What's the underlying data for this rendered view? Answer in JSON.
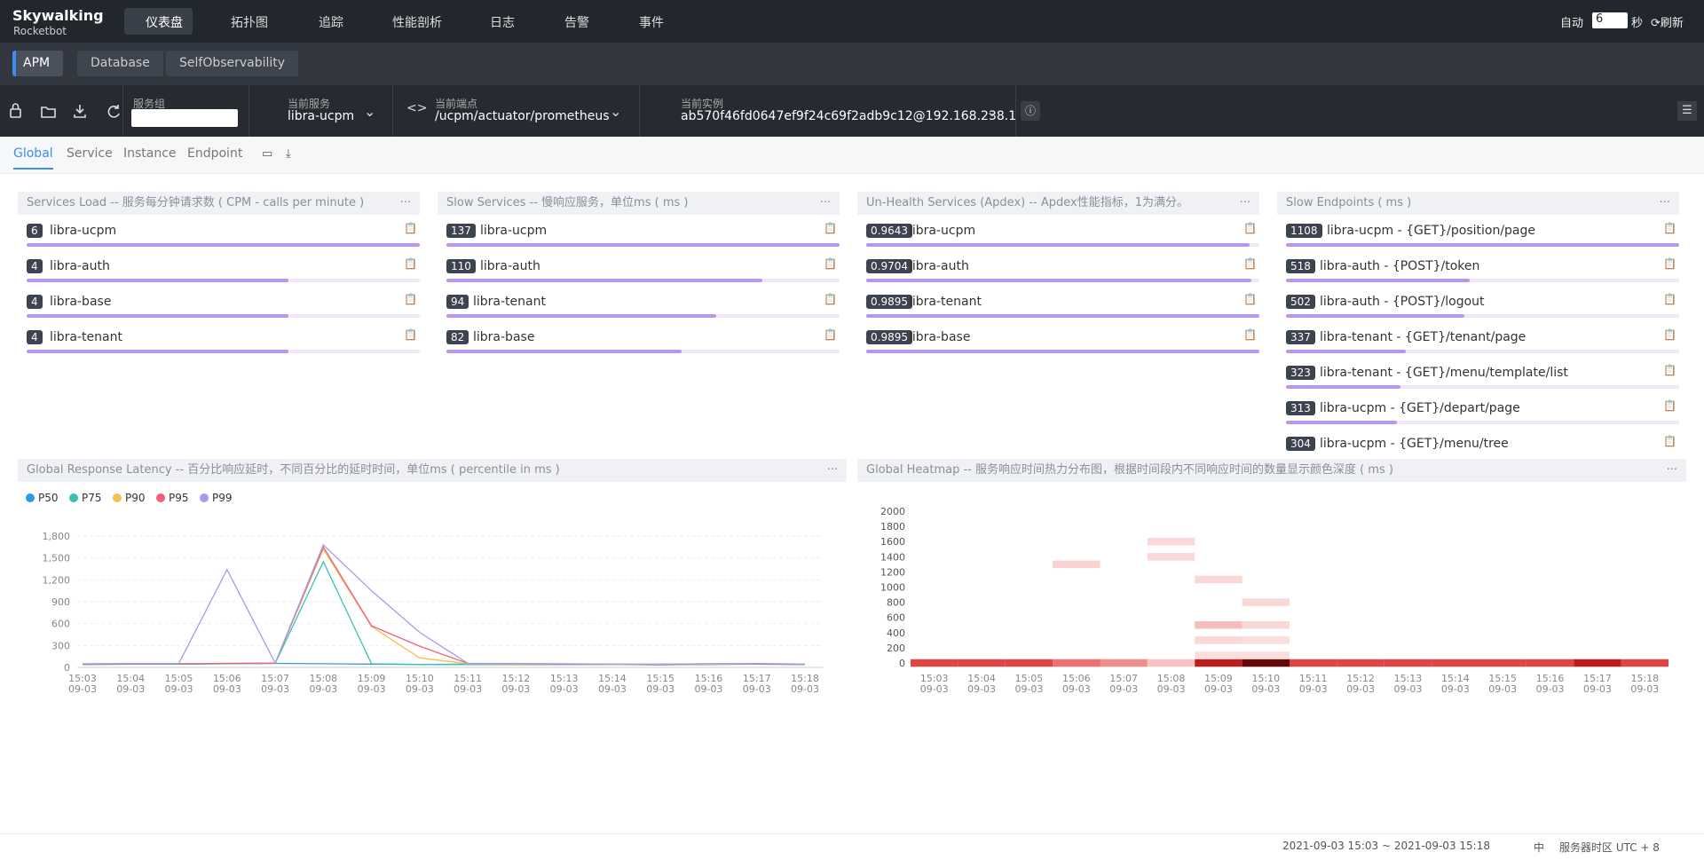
{
  "nav": {
    "logo": "Skywalking",
    "logo_sub": "Rocketbot",
    "menu": [
      "仪表盘",
      "拓扑图",
      "追踪",
      "性能剖析",
      "日志",
      "告警",
      "事件"
    ],
    "auto_label": "自动",
    "interval": 6,
    "interval_unit": "秒",
    "refresh": "刷新"
  },
  "tabs": [
    "APM",
    "Database",
    "SelfObservability"
  ],
  "toolbar": {
    "group_label": "服务组",
    "service_label": "当前服务",
    "service": "libra-ucpm",
    "endpoint_label": "当前端点",
    "endpoint": "/ucpm/actuator/prometheus",
    "instance_label": "当前实例",
    "instance": "ab570f46fd0647ef9f24c69f2adb9c12@192.168.238.1"
  },
  "subtabs": [
    "Global",
    "Service",
    "Instance",
    "Endpoint"
  ],
  "panels": [
    {
      "title": "Services Load -- 服务每分钟请求数 ( CPM - calls per minute )",
      "items": [
        {
          "value": 6,
          "name": "libra-ucpm"
        },
        {
          "value": 4,
          "name": "libra-auth"
        },
        {
          "value": 4,
          "name": "libra-base"
        },
        {
          "value": 4,
          "name": "libra-tenant"
        }
      ]
    },
    {
      "title": "Slow Services -- 慢响应服务，单位ms ( ms )",
      "items": [
        {
          "value": 137,
          "name": "libra-ucpm"
        },
        {
          "value": 110,
          "name": "libra-auth"
        },
        {
          "value": 94,
          "name": "libra-tenant"
        },
        {
          "value": 82,
          "name": "libra-base"
        }
      ]
    },
    {
      "title": "Un-Health Services (Apdex) -- Apdex性能指标，1为满分。",
      "items": [
        {
          "value": 0.9643,
          "name": "libra-ucpm"
        },
        {
          "value": 0.9704,
          "name": "libra-auth"
        },
        {
          "value": 0.9895,
          "name": "libra-tenant"
        },
        {
          "value": 0.9895,
          "name": "libra-base"
        }
      ]
    },
    {
      "title": "Slow Endpoints ( ms )",
      "items": [
        {
          "value": 1108,
          "name": "libra-ucpm - {GET}/position/page"
        },
        {
          "value": 518,
          "name": "libra-auth - {POST}/token"
        },
        {
          "value": 502,
          "name": "libra-auth - {POST}/logout"
        },
        {
          "value": 337,
          "name": "libra-tenant - {GET}/tenant/page"
        },
        {
          "value": 323,
          "name": "libra-tenant - {GET}/menu/template/list"
        },
        {
          "value": 313,
          "name": "libra-ucpm - {GET}/depart/page"
        },
        {
          "value": 304,
          "name": "libra-ucpm - {GET}/menu/tree"
        }
      ]
    }
  ],
  "latency_chart": {
    "type": "line",
    "title": "Global Response Latency -- 百分比响应延时，不同百分比的延时时间，单位ms ( percentile in ms )",
    "categories": [
      "15:03",
      "15:04",
      "15:05",
      "15:06",
      "15:07",
      "15:08",
      "15:09",
      "15:10",
      "15:11",
      "15:12",
      "15:13",
      "15:14",
      "15:15",
      "15:16",
      "15:17",
      "15:18"
    ],
    "category_dates": [
      "09-03",
      "09-03",
      "09-03",
      "09-03",
      "09-03",
      "09-03",
      "09-03",
      "09-03",
      "09-03",
      "09-03",
      "09-03",
      "09-03",
      "09-03",
      "09-03",
      "09-03",
      "09-03"
    ],
    "ylim": [
      0,
      1800
    ],
    "yticks": [
      0,
      300,
      600,
      900,
      {
        "value": 1200,
        "label": "1,200"
      },
      {
        "value": 1500,
        "label": "1,500"
      },
      {
        "value": 1800,
        "label": "1,800"
      }
    ],
    "grid": true,
    "series": [
      {
        "name": "P50",
        "color": "#2f9be3",
        "values": [
          40,
          45,
          45,
          50,
          55,
          50,
          45,
          40,
          40,
          40,
          40,
          40,
          35,
          40,
          45,
          40
        ]
      },
      {
        "name": "P75",
        "color": "#3bc1b3",
        "values": [
          40,
          45,
          45,
          50,
          55,
          1450,
          50,
          40,
          45,
          40,
          45,
          40,
          35,
          45,
          45,
          40
        ]
      },
      {
        "name": "P90",
        "color": "#f6c24d",
        "values": [
          45,
          50,
          50,
          55,
          60,
          1620,
          560,
          130,
          50,
          45,
          45,
          40,
          40,
          45,
          50,
          45
        ]
      },
      {
        "name": "P95",
        "color": "#f0607c",
        "values": [
          45,
          50,
          50,
          55,
          60,
          1650,
          570,
          290,
          55,
          50,
          45,
          45,
          40,
          50,
          50,
          45
        ]
      },
      {
        "name": "P99",
        "color": "#a39cef",
        "values": [
          50,
          55,
          55,
          1340,
          60,
          1680,
          1050,
          480,
          55,
          55,
          50,
          45,
          45,
          50,
          55,
          45
        ]
      }
    ]
  },
  "heatmap": {
    "type": "heatmap",
    "title": "Global Heatmap -- 服务响应时间热力分布图，根据时间段内不同响应时间的数量显示颜色深度 ( ms )",
    "categories": [
      "15:03",
      "15:04",
      "15:05",
      "15:06",
      "15:07",
      "15:08",
      "15:09",
      "15:10",
      "15:11",
      "15:12",
      "15:13",
      "15:14",
      "15:15",
      "15:16",
      "15:17",
      "15:18"
    ],
    "category_dates": [
      "09-03",
      "09-03",
      "09-03",
      "09-03",
      "09-03",
      "09-03",
      "09-03",
      "09-03",
      "09-03",
      "09-03",
      "09-03",
      "09-03",
      "09-03",
      "09-03",
      "09-03",
      "09-03"
    ],
    "ylim": [
      0,
      2000
    ],
    "yticks": [
      0,
      200,
      400,
      600,
      800,
      1000,
      1200,
      1400,
      1600,
      1800,
      2000
    ],
    "cells": [
      [
        0,
        0,
        30
      ],
      [
        1,
        0,
        30
      ],
      [
        2,
        0,
        30
      ],
      [
        3,
        0,
        18
      ],
      [
        4,
        0,
        14
      ],
      [
        5,
        0,
        6
      ],
      [
        6,
        0,
        46
      ],
      [
        7,
        0,
        62
      ],
      [
        8,
        0,
        30
      ],
      [
        9,
        0,
        30
      ],
      [
        10,
        0,
        30
      ],
      [
        11,
        0,
        30
      ],
      [
        12,
        0,
        30
      ],
      [
        13,
        0,
        30
      ],
      [
        14,
        0,
        46
      ],
      [
        15,
        0,
        30
      ],
      [
        3,
        1300,
        4
      ],
      [
        5,
        1400,
        3
      ],
      [
        5,
        1600,
        3
      ],
      [
        6,
        1100,
        3
      ],
      [
        6,
        500,
        7
      ],
      [
        6,
        300,
        3
      ],
      [
        6,
        100,
        2
      ],
      [
        7,
        800,
        3
      ],
      [
        7,
        500,
        3
      ],
      [
        7,
        300,
        2
      ],
      [
        7,
        100,
        2
      ]
    ]
  },
  "footer": {
    "range": "2021-09-03 15:03 ~ 2021-09-03 15:18",
    "lang": "中",
    "timezone": "服务器时区 UTC + 8"
  }
}
